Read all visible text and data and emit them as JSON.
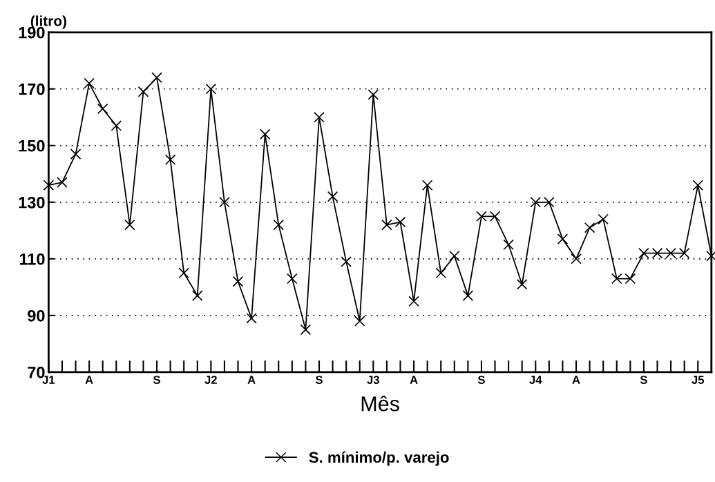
{
  "chart_data": {
    "type": "line",
    "ylabel": "(litro)",
    "xlabel": "Mês",
    "categories": [
      "J1",
      null,
      null,
      "A",
      null,
      null,
      null,
      null,
      "S",
      null,
      null,
      null,
      "J2",
      null,
      null,
      "A",
      null,
      null,
      null,
      null,
      "S",
      null,
      null,
      null,
      "J3",
      null,
      null,
      "A",
      null,
      null,
      null,
      null,
      "S",
      null,
      null,
      null,
      "J4",
      null,
      null,
      "A",
      null,
      null,
      null,
      null,
      "S",
      null,
      null,
      null,
      "J5",
      null
    ],
    "series": [
      {
        "name": "S. mínimo/p. varejo",
        "color": "#000000",
        "values": [
          136,
          137,
          147,
          172,
          163,
          157,
          122,
          169,
          174,
          145,
          105,
          97,
          170,
          130,
          102,
          89,
          154,
          122,
          103,
          85,
          160,
          132,
          109,
          88,
          168,
          122,
          123,
          95,
          136,
          105,
          111,
          97,
          125,
          125,
          115,
          101,
          130,
          130,
          117,
          110,
          121,
          124,
          103,
          103,
          112,
          112,
          112,
          112,
          136,
          111
        ]
      }
    ],
    "ylim": [
      70,
      190
    ],
    "yticks": [
      70,
      90,
      110,
      130,
      150,
      170,
      190
    ],
    "grid": "y",
    "legend": "bottom",
    "marker": "cross",
    "line_style": "solid"
  }
}
